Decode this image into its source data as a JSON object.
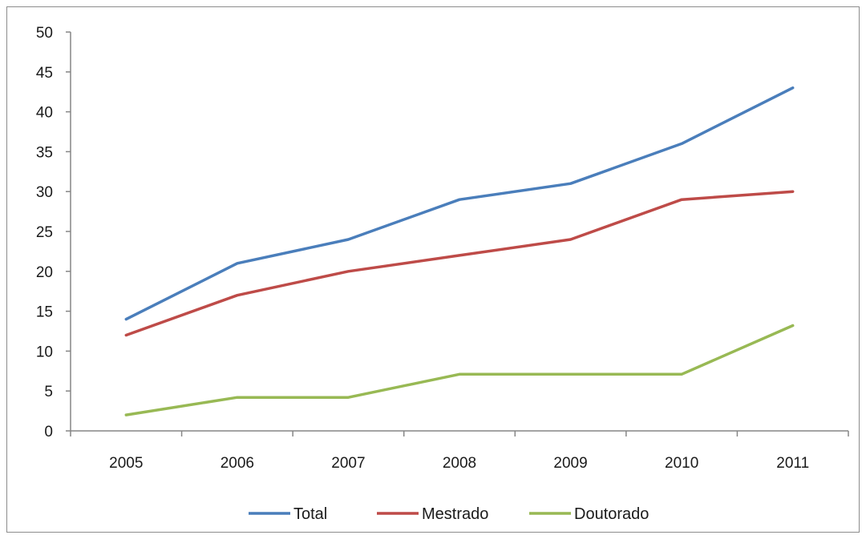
{
  "chart_data": {
    "type": "line",
    "categories": [
      "2005",
      "2006",
      "2007",
      "2008",
      "2009",
      "2010",
      "2011"
    ],
    "series": [
      {
        "name": "Total",
        "color": "#4a7ebb",
        "values": [
          14,
          21,
          24,
          29,
          31,
          36,
          43
        ]
      },
      {
        "name": "Mestrado",
        "color": "#be4b48",
        "values": [
          12,
          17,
          20,
          22,
          24,
          29,
          30
        ]
      },
      {
        "name": "Doutorado",
        "color": "#98b954",
        "values": [
          2,
          4.2,
          4.2,
          7.1,
          7.1,
          7.1,
          13.2
        ]
      }
    ],
    "ylim": [
      0,
      50
    ],
    "yticks": [
      "0",
      "5",
      "10",
      "15",
      "20",
      "25",
      "30",
      "35",
      "40",
      "45",
      "50"
    ],
    "grid": false,
    "legend_position": "bottom"
  }
}
